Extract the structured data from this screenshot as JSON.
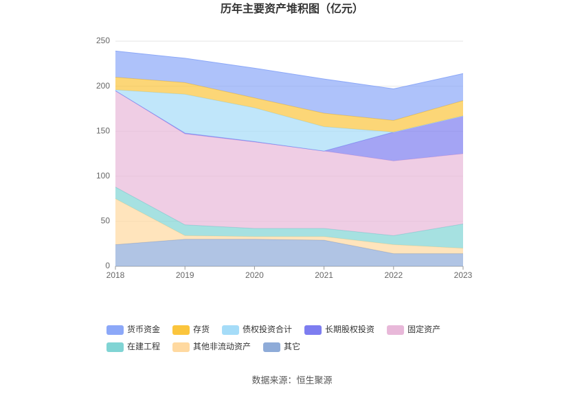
{
  "chart_data": {
    "type": "stacked_area",
    "title": "历年主要资产堆积图（亿元）",
    "categories": [
      "2018",
      "2019",
      "2020",
      "2021",
      "2022",
      "2023"
    ],
    "series": [
      {
        "name": "其它",
        "color": "#8eabd8",
        "values": [
          24,
          30,
          30,
          29,
          14,
          14
        ]
      },
      {
        "name": "其他非流动资产",
        "color": "#ffd9a0",
        "values": [
          51,
          4,
          3,
          4,
          10,
          6
        ]
      },
      {
        "name": "在建工程",
        "color": "#80d4d4",
        "values": [
          13,
          12,
          9,
          9,
          10,
          27
        ]
      },
      {
        "name": "固定资产",
        "color": "#e8b8d9",
        "values": [
          107,
          101,
          96,
          86,
          83,
          78
        ]
      },
      {
        "name": "长期股权投资",
        "color": "#7d7df0",
        "values": [
          0,
          1,
          0.5,
          0,
          32,
          42
        ]
      },
      {
        "name": "债权投资合计",
        "color": "#a5dcf8",
        "values": [
          1,
          43,
          37.5,
          27,
          0,
          0
        ]
      },
      {
        "name": "存货",
        "color": "#fbc53d",
        "values": [
          14,
          13,
          11,
          15,
          13,
          17
        ]
      },
      {
        "name": "货币资金",
        "color": "#8ca8f8",
        "values": [
          29,
          27,
          33,
          38,
          35,
          30
        ]
      }
    ],
    "legend_order": [
      7,
      6,
      5,
      4,
      3,
      2,
      1,
      0
    ],
    "ylim": [
      0,
      250
    ],
    "yticks": [
      0,
      50,
      100,
      150,
      200,
      250
    ],
    "grid": true,
    "source": "数据来源：恒生聚源"
  }
}
